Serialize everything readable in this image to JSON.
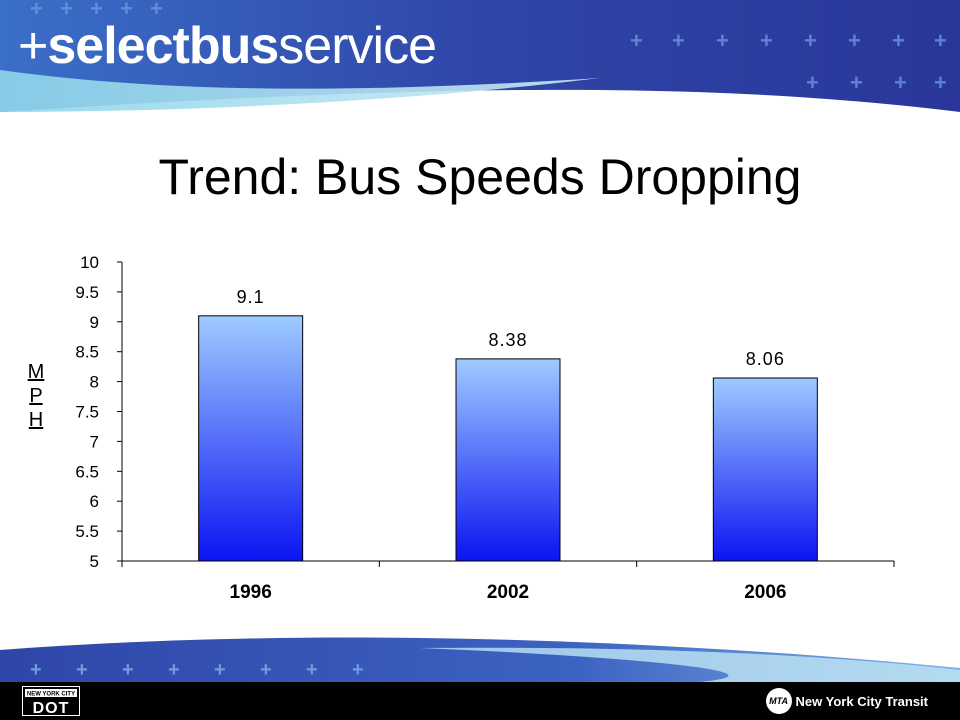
{
  "header": {
    "logo_plus": "+",
    "logo_select": "select",
    "logo_bus": "bus",
    "logo_service": "service"
  },
  "slide": {
    "title": "Trend: Bus Speeds Dropping",
    "ylabel_letters": [
      "M",
      "P",
      "H"
    ]
  },
  "chart_data": {
    "type": "bar",
    "categories": [
      "1996",
      "2002",
      "2006"
    ],
    "values": [
      9.1,
      8.38,
      8.06
    ],
    "data_labels": [
      "9.1",
      "8.38",
      "8.06"
    ],
    "ylabel": "MPH",
    "xlabel": "",
    "ylim": [
      5,
      10
    ],
    "yticks": [
      5,
      5.5,
      6,
      6.5,
      7,
      7.5,
      8,
      8.5,
      9,
      9.5,
      10
    ],
    "ytick_labels": [
      "5",
      "5.5",
      "6",
      "6.5",
      "7",
      "7.5",
      "8",
      "8.5",
      "9",
      "9.5",
      "10"
    ],
    "grid": false,
    "colors": {
      "bar_top": "#9ecbff",
      "bar_bottom": "#0b14f2",
      "bar_stroke": "#000000"
    }
  },
  "footer": {
    "dot_top": "NEW YORK CITY",
    "dot_bottom": "DOT",
    "mta_badge": "MTA",
    "nyct_label": "New York City Transit"
  },
  "colors": {
    "banner_dark": "#2c3a9e",
    "banner_mid": "#3c5fc0",
    "banner_light": "#8fd0e8",
    "footer_bg": "#000000"
  }
}
